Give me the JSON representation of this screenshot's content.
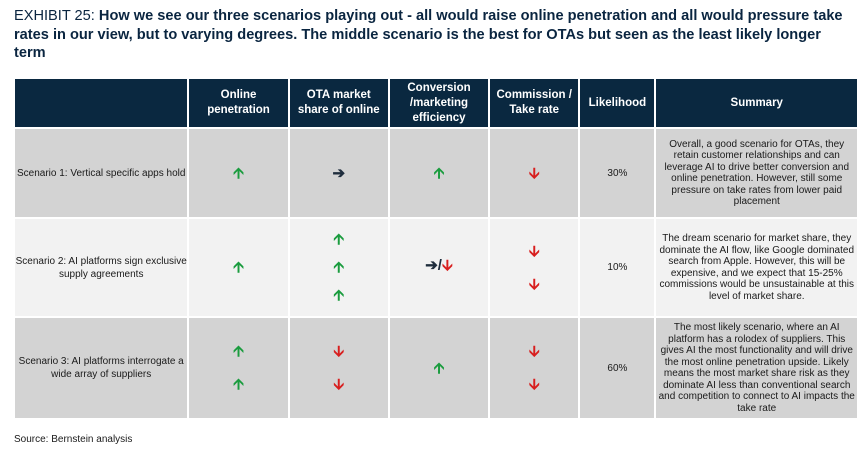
{
  "exhibit": {
    "label": "EXHIBIT 25:",
    "title": "How we see our three scenarios playing out - all would raise online penetration and all would pressure take rates in our view, but to varying degrees. The middle scenario is the best for OTAs but seen as the least likely longer term"
  },
  "table": {
    "headers": [
      "",
      "Online penetration",
      "OTA market share of online",
      "Conversion /marketing efficiency",
      "Commission / Take rate",
      "Likelihood",
      "Summary"
    ],
    "rows": [
      {
        "scenario": "Scenario 1: Vertical specific apps hold",
        "online_penetration": [
          "up"
        ],
        "ota_share": [
          "right"
        ],
        "conversion": [
          "up"
        ],
        "commission": [
          "down"
        ],
        "likelihood": "30%",
        "summary": "Overall, a good scenario for OTAs, they retain customer relationships and can leverage AI to drive better conversion and online penetration. However, still some pressure on take rates from lower paid placement"
      },
      {
        "scenario": "Scenario 2: AI platforms sign exclusive supply agreements",
        "online_penetration": [
          "up"
        ],
        "ota_share": [
          "up",
          "up",
          "up"
        ],
        "conversion": [
          "right/down"
        ],
        "commission": [
          "down",
          "down"
        ],
        "likelihood": "10%",
        "summary": "The dream scenario for market share, they dominate the AI flow, like Google dominated search from Apple. However, this will be expensive, and we expect that 15-25% commissions would be unsustainable at this level of market share."
      },
      {
        "scenario": "Scenario 3: AI platforms interrogate a wide array of suppliers",
        "online_penetration": [
          "up",
          "up"
        ],
        "ota_share": [
          "down",
          "down"
        ],
        "conversion": [
          "up"
        ],
        "commission": [
          "down",
          "down"
        ],
        "likelihood": "60%",
        "summary": "The most likely scenario, where an AI platform has a rolodex of suppliers. This gives AI the most functionality and will drive the most online penetration upside. Likely means the most market share risk as they dominate AI less than conventional search and competition to connect to AI impacts  the take rate"
      }
    ]
  },
  "glyphs": {
    "up": "🡩",
    "down": "🡫",
    "right": "➔",
    "slash": "/"
  },
  "colors": {
    "header_bg": "#0a2840",
    "up": "#1a9c3e",
    "down": "#d81e1e",
    "neutral": "#1f2d3d",
    "row_dark": "#d3d3d3",
    "row_light": "#f2f2f2"
  },
  "source": "Source: Bernstein analysis"
}
